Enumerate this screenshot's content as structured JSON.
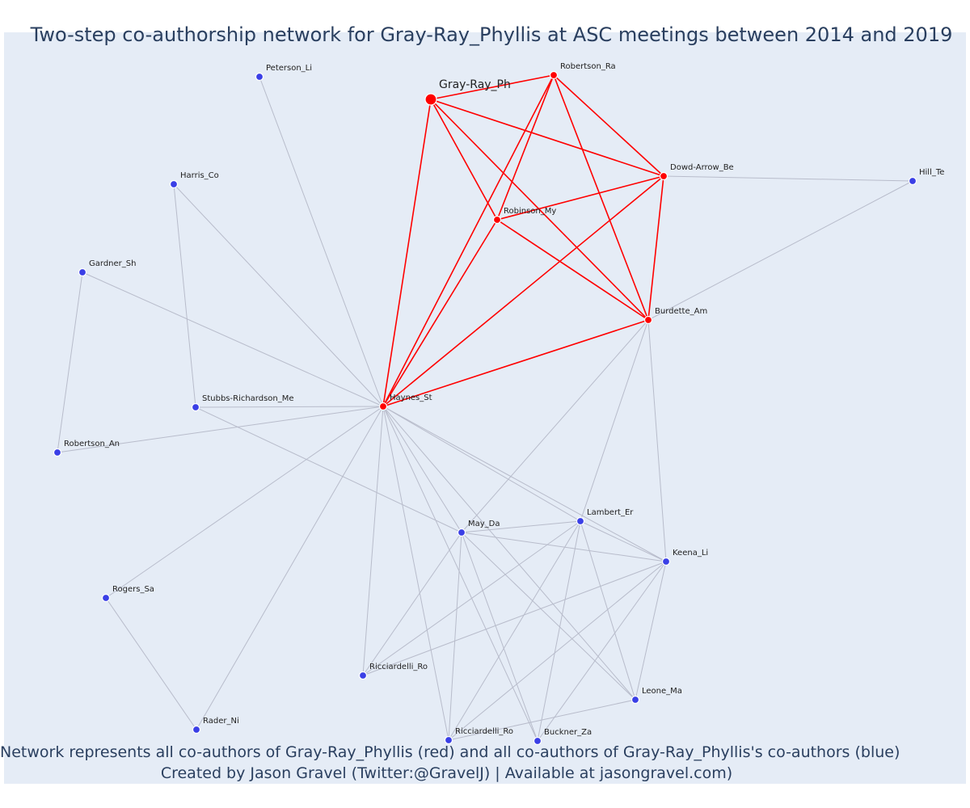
{
  "title": "Two-step co-authorship network for Gray-Ray_Phyllis at ASC meetings between 2014 and 2019",
  "footer": {
    "line1": "Network represents all co-authors of Gray-Ray_Phyllis (red) and all co-authors of Gray-Ray_Phyllis's co-authors (blue)",
    "line2": "Created by Jason Gravel (Twitter:@GravelJ) | Available at jasongravel.com)"
  },
  "colors": {
    "background": "#e5ecf6",
    "direct": "#ff0000",
    "secondary": "#3a3fe6",
    "edge_direct": "#ff0000",
    "edge_secondary": "#b8bccb",
    "text": "#2a3f5f"
  },
  "network": {
    "ego": "Gray-Ray_Ph",
    "nodes": [
      {
        "id": "Gray-Ray_Ph",
        "group": "ego"
      },
      {
        "id": "Robertson_Ra",
        "group": "direct"
      },
      {
        "id": "Dowd-Arrow_Be",
        "group": "direct"
      },
      {
        "id": "Robinson_My",
        "group": "direct"
      },
      {
        "id": "Burdette_Am",
        "group": "direct"
      },
      {
        "id": "Haynes_St",
        "group": "direct"
      },
      {
        "id": "Peterson_Li",
        "group": "secondary"
      },
      {
        "id": "Harris_Co",
        "group": "secondary"
      },
      {
        "id": "Gardner_Sh",
        "group": "secondary"
      },
      {
        "id": "Stubbs-Richardson_Me",
        "group": "secondary"
      },
      {
        "id": "Robertson_An",
        "group": "secondary"
      },
      {
        "id": "Hill_Te",
        "group": "secondary"
      },
      {
        "id": "Lambert_Er",
        "group": "secondary"
      },
      {
        "id": "May_Da",
        "group": "secondary"
      },
      {
        "id": "Keena_Li",
        "group": "secondary"
      },
      {
        "id": "Rogers_Sa",
        "group": "secondary"
      },
      {
        "id": "Ricciardelli_Ro",
        "group": "secondary"
      },
      {
        "id": "Leone_Ma",
        "group": "secondary"
      },
      {
        "id": "Rader_Ni",
        "group": "secondary"
      },
      {
        "id": "Ricciardelli_Ro ",
        "group": "secondary"
      },
      {
        "id": "Buckner_Za",
        "group": "secondary"
      }
    ],
    "edges": [
      [
        "Gray-Ray_Ph",
        "Robertson_Ra",
        "direct"
      ],
      [
        "Gray-Ray_Ph",
        "Dowd-Arrow_Be",
        "direct"
      ],
      [
        "Gray-Ray_Ph",
        "Robinson_My",
        "direct"
      ],
      [
        "Gray-Ray_Ph",
        "Burdette_Am",
        "direct"
      ],
      [
        "Gray-Ray_Ph",
        "Haynes_St",
        "direct"
      ],
      [
        "Robertson_Ra",
        "Dowd-Arrow_Be",
        "direct"
      ],
      [
        "Robertson_Ra",
        "Robinson_My",
        "direct"
      ],
      [
        "Robertson_Ra",
        "Burdette_Am",
        "direct"
      ],
      [
        "Robertson_Ra",
        "Haynes_St",
        "direct"
      ],
      [
        "Dowd-Arrow_Be",
        "Robinson_My",
        "direct"
      ],
      [
        "Dowd-Arrow_Be",
        "Burdette_Am",
        "direct"
      ],
      [
        "Dowd-Arrow_Be",
        "Haynes_St",
        "direct"
      ],
      [
        "Robinson_My",
        "Burdette_Am",
        "direct"
      ],
      [
        "Robinson_My",
        "Haynes_St",
        "direct"
      ],
      [
        "Burdette_Am",
        "Haynes_St",
        "direct"
      ],
      [
        "Dowd-Arrow_Be",
        "Hill_Te",
        "secondary"
      ],
      [
        "Burdette_Am",
        "Hill_Te",
        "secondary"
      ],
      [
        "Burdette_Am",
        "Lambert_Er",
        "secondary"
      ],
      [
        "Burdette_Am",
        "May_Da",
        "secondary"
      ],
      [
        "Burdette_Am",
        "Keena_Li",
        "secondary"
      ],
      [
        "Haynes_St",
        "Peterson_Li",
        "secondary"
      ],
      [
        "Haynes_St",
        "Harris_Co",
        "secondary"
      ],
      [
        "Haynes_St",
        "Gardner_Sh",
        "secondary"
      ],
      [
        "Haynes_St",
        "Stubbs-Richardson_Me",
        "secondary"
      ],
      [
        "Haynes_St",
        "Robertson_An",
        "secondary"
      ],
      [
        "Haynes_St",
        "Rogers_Sa",
        "secondary"
      ],
      [
        "Haynes_St",
        "Rader_Ni",
        "secondary"
      ],
      [
        "Haynes_St",
        "Ricciardelli_Ro",
        "secondary"
      ],
      [
        "Haynes_St",
        "Ricciardelli_Ro ",
        "secondary"
      ],
      [
        "Haynes_St",
        "Buckner_Za",
        "secondary"
      ],
      [
        "Haynes_St",
        "May_Da",
        "secondary"
      ],
      [
        "Haynes_St",
        "Lambert_Er",
        "secondary"
      ],
      [
        "Haynes_St",
        "Keena_Li",
        "secondary"
      ],
      [
        "Haynes_St",
        "Leone_Ma",
        "secondary"
      ],
      [
        "Harris_Co",
        "Stubbs-Richardson_Me",
        "secondary"
      ],
      [
        "Gardner_Sh",
        "Robertson_An",
        "secondary"
      ],
      [
        "Stubbs-Richardson_Me",
        "May_Da",
        "secondary"
      ],
      [
        "Rogers_Sa",
        "Rader_Ni",
        "secondary"
      ],
      [
        "May_Da",
        "Lambert_Er",
        "secondary"
      ],
      [
        "May_Da",
        "Keena_Li",
        "secondary"
      ],
      [
        "May_Da",
        "Leone_Ma",
        "secondary"
      ],
      [
        "May_Da",
        "Ricciardelli_Ro",
        "secondary"
      ],
      [
        "May_Da",
        "Ricciardelli_Ro ",
        "secondary"
      ],
      [
        "May_Da",
        "Buckner_Za",
        "secondary"
      ],
      [
        "Lambert_Er",
        "Keena_Li",
        "secondary"
      ],
      [
        "Lambert_Er",
        "Leone_Ma",
        "secondary"
      ],
      [
        "Lambert_Er",
        "Ricciardelli_Ro",
        "secondary"
      ],
      [
        "Lambert_Er",
        "Ricciardelli_Ro ",
        "secondary"
      ],
      [
        "Lambert_Er",
        "Buckner_Za",
        "secondary"
      ],
      [
        "Keena_Li",
        "Leone_Ma",
        "secondary"
      ],
      [
        "Keena_Li",
        "Ricciardelli_Ro",
        "secondary"
      ],
      [
        "Keena_Li",
        "Ricciardelli_Ro ",
        "secondary"
      ],
      [
        "Keena_Li",
        "Buckner_Za",
        "secondary"
      ],
      [
        "Leone_Ma",
        "Ricciardelli_Ro ",
        "secondary"
      ]
    ]
  }
}
